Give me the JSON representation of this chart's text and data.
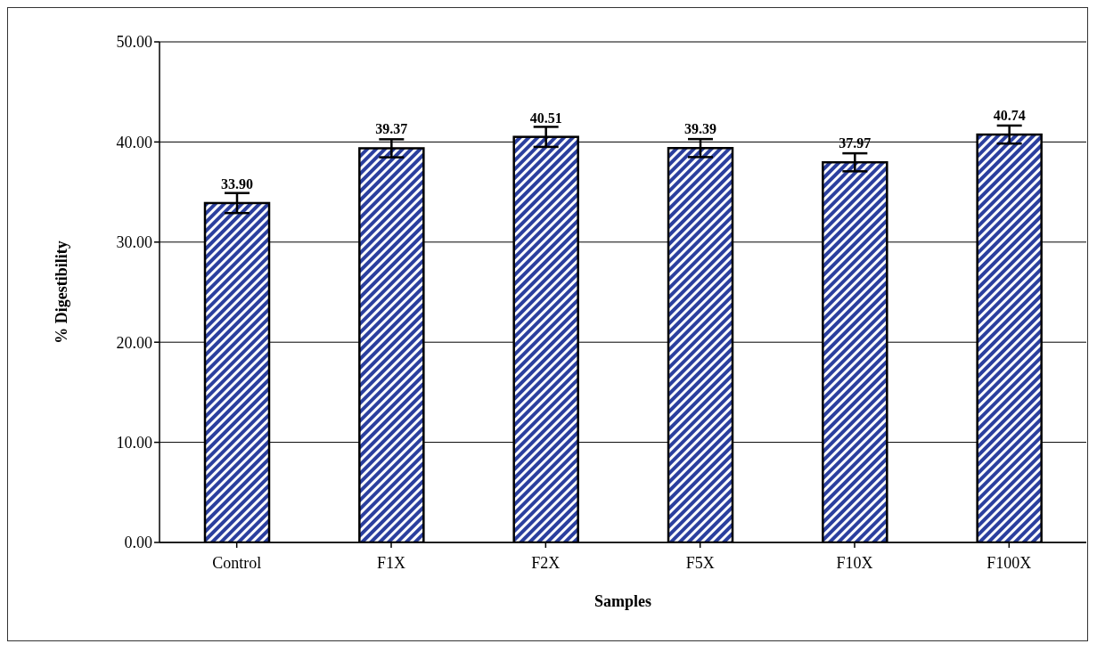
{
  "chart_data": {
    "type": "bar",
    "xlabel": "Samples",
    "ylabel": "% Digestibility",
    "categories": [
      "Control",
      "F1X",
      "F2X",
      "F5X",
      "F10X",
      "F100X"
    ],
    "values": [
      33.9,
      39.37,
      40.51,
      39.39,
      37.97,
      40.74
    ],
    "errors": [
      1.0,
      0.9,
      1.0,
      0.9,
      0.9,
      0.9
    ],
    "value_labels": [
      "33.90",
      "39.37",
      "40.51",
      "39.39",
      "37.97",
      "40.74"
    ],
    "color": "#2b3f9e",
    "ylim": [
      0,
      50
    ],
    "yticks": [
      {
        "value": 0,
        "label": "0.00"
      },
      {
        "value": 10,
        "label": "10.00"
      },
      {
        "value": 20,
        "label": "20.00"
      },
      {
        "value": 30,
        "label": "30.00"
      },
      {
        "value": 40,
        "label": "40.00"
      },
      {
        "value": 50,
        "label": "50.00"
      }
    ],
    "grid": "y",
    "legend": false
  }
}
